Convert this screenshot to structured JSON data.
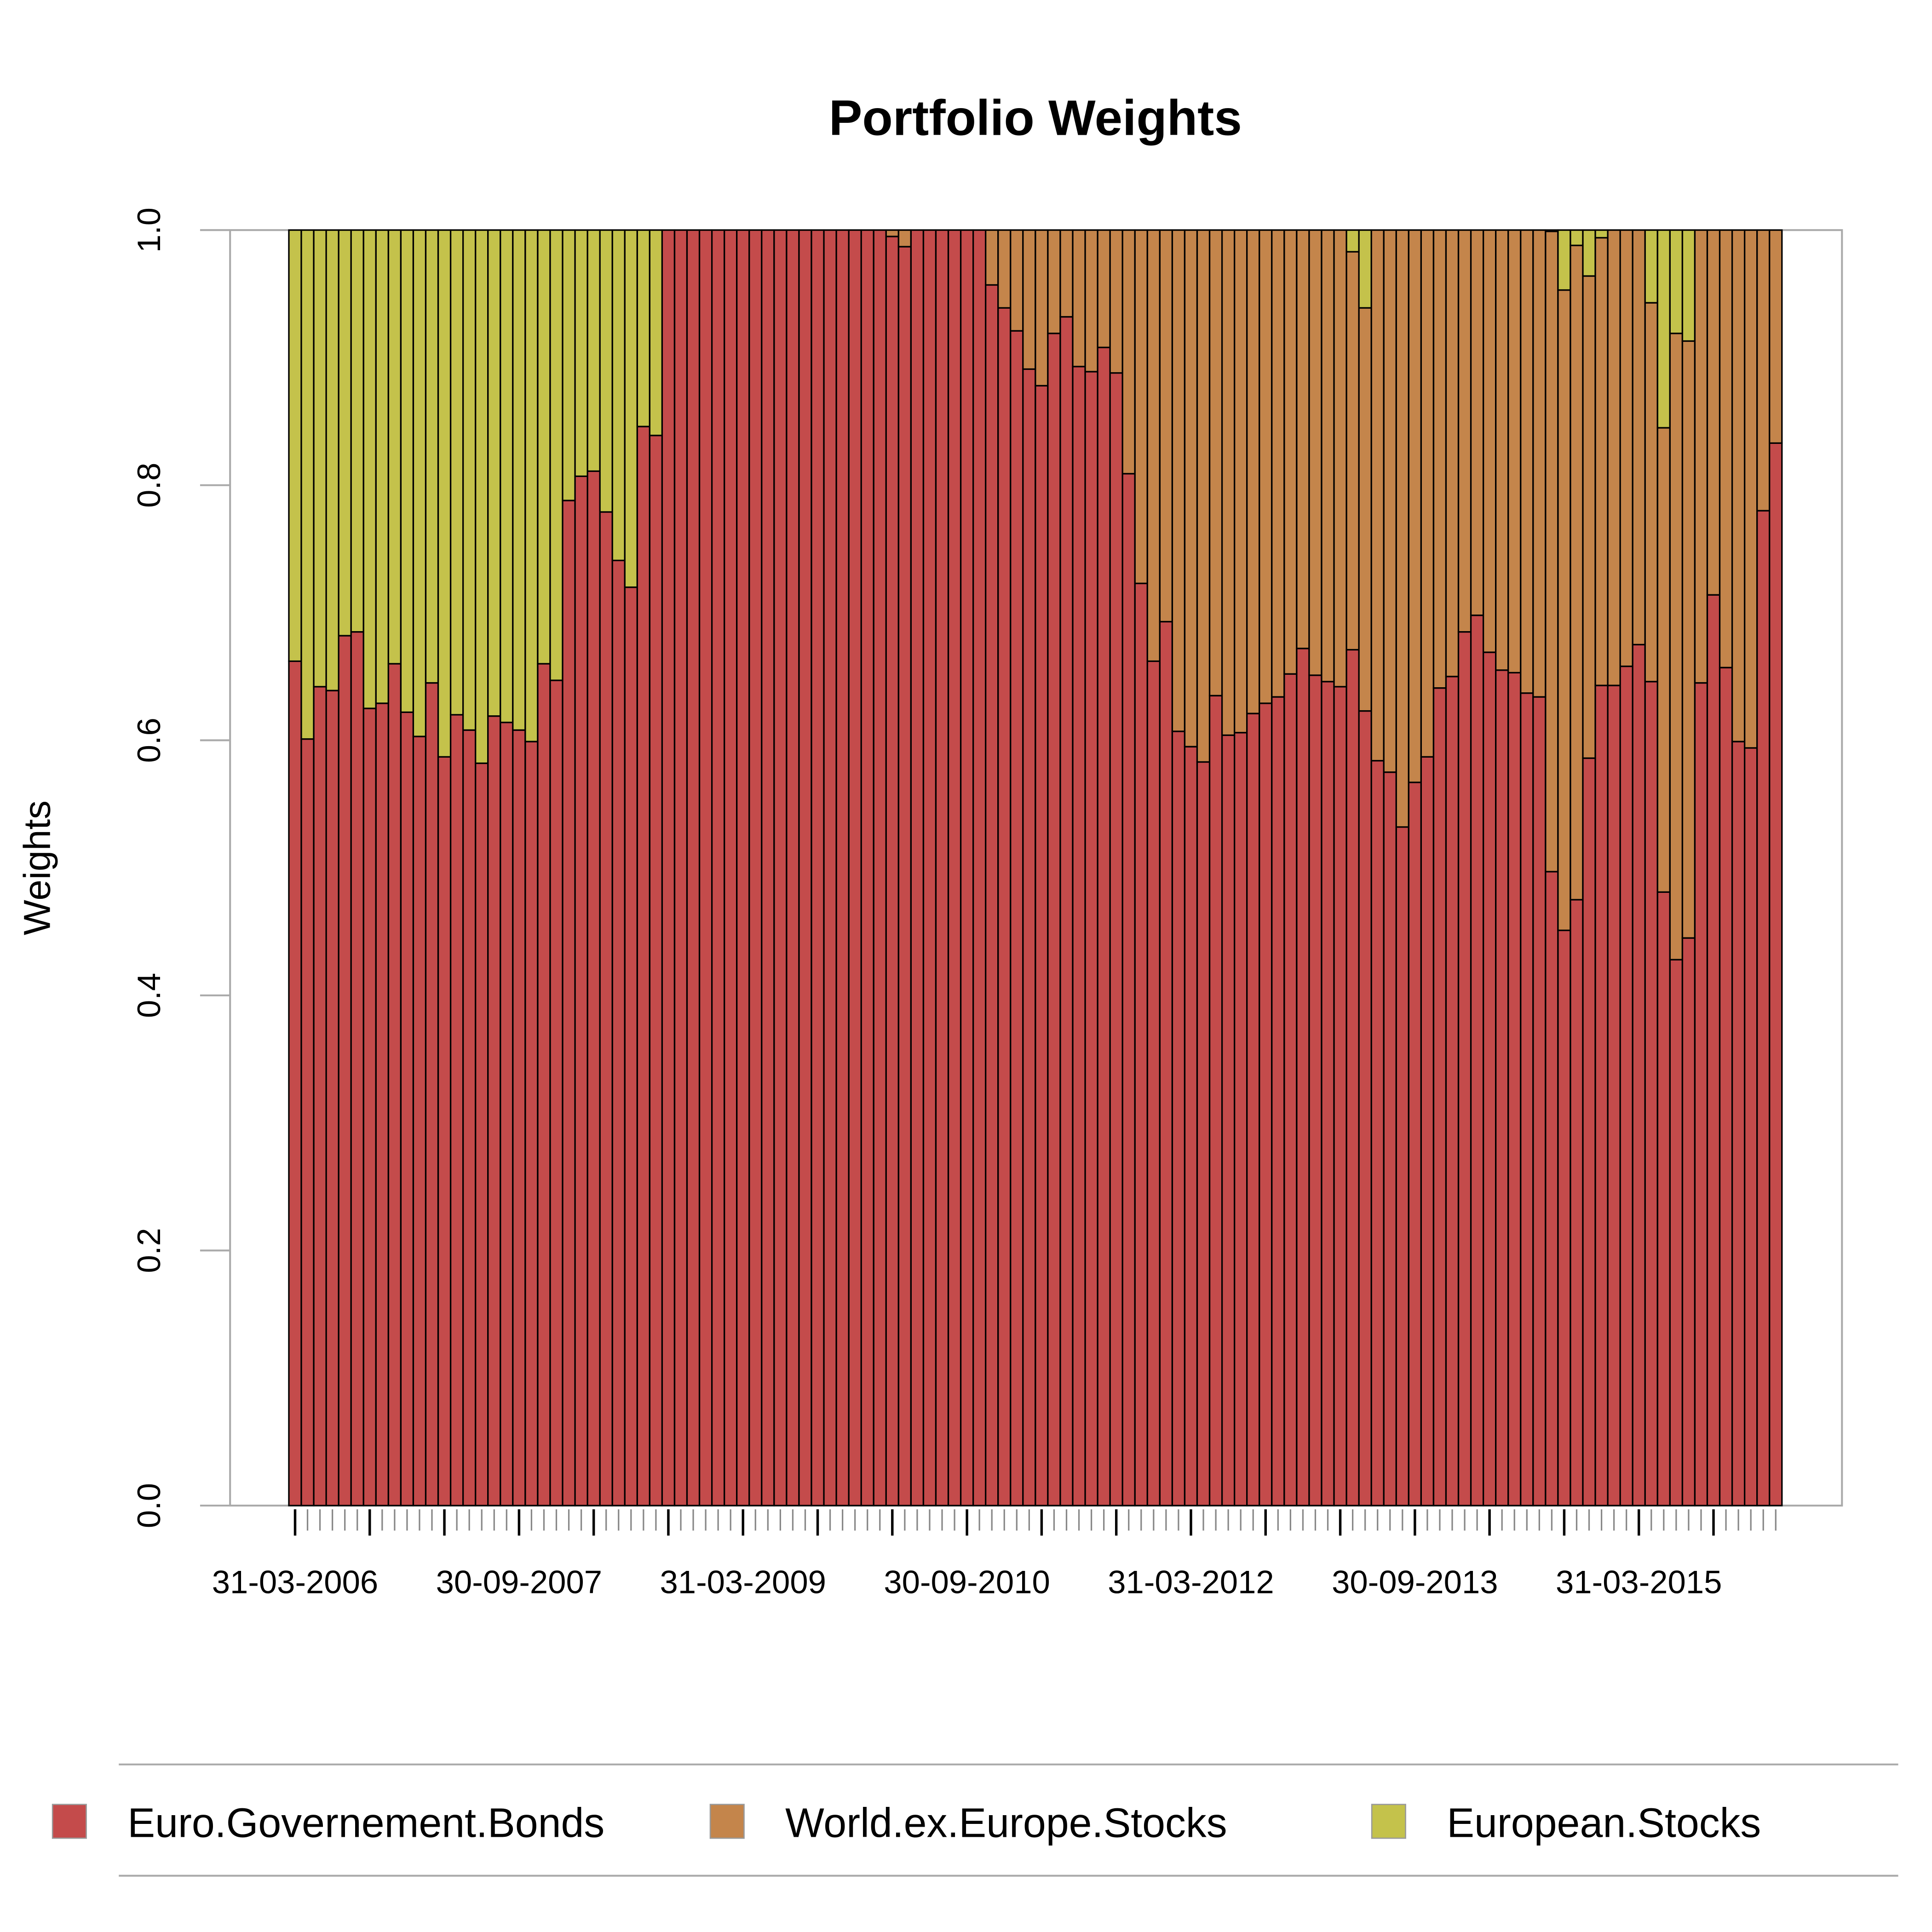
{
  "chart_data": {
    "type": "stacked-bar",
    "title": "Portfolio Weights",
    "ylabel": "Weights",
    "categories": [
      "31-03-2006",
      null,
      null,
      null,
      null,
      null,
      null,
      null,
      null,
      null,
      null,
      null,
      null,
      null,
      null,
      null,
      null,
      null,
      "30-09-2007",
      null,
      null,
      null,
      null,
      null,
      null,
      null,
      null,
      null,
      null,
      null,
      null,
      null,
      null,
      null,
      null,
      null,
      "31-03-2009",
      null,
      null,
      null,
      null,
      null,
      null,
      null,
      null,
      null,
      null,
      null,
      null,
      null,
      null,
      null,
      null,
      null,
      "30-09-2010",
      null,
      null,
      null,
      null,
      null,
      null,
      null,
      null,
      null,
      null,
      null,
      null,
      null,
      null,
      null,
      null,
      null,
      "31-03-2012",
      null,
      null,
      null,
      null,
      null,
      null,
      null,
      null,
      null,
      null,
      null,
      null,
      null,
      null,
      null,
      null,
      null,
      "30-09-2013",
      null,
      null,
      null,
      null,
      null,
      null,
      null,
      null,
      null,
      null,
      null,
      null,
      null,
      null,
      null,
      null,
      null,
      "31-03-2015",
      null,
      null,
      null,
      null,
      null,
      null,
      null,
      null,
      null,
      null,
      null
    ],
    "series": [
      {
        "name": "Euro.Governement.Bonds",
        "color": "#c44b4b",
        "values": [
          0.662,
          0.601,
          0.642,
          0.639,
          0.682,
          0.685,
          0.625,
          0.629,
          0.66,
          0.622,
          0.603,
          0.645,
          0.587,
          0.62,
          0.608,
          0.582,
          0.619,
          0.614,
          0.608,
          0.599,
          0.66,
          0.647,
          0.788,
          0.807,
          0.811,
          0.779,
          0.741,
          0.72,
          0.846,
          0.839,
          1,
          1,
          1,
          1,
          1,
          1,
          1,
          1,
          1,
          1,
          1,
          1,
          1,
          1,
          1,
          1,
          1,
          1,
          0.995,
          0.987,
          1,
          1,
          1,
          1,
          1,
          1,
          0.957,
          0.939,
          0.921,
          0.891,
          0.878,
          0.919,
          0.932,
          0.893,
          0.889,
          0.908,
          0.888,
          0.809,
          0.723,
          0.662,
          0.693,
          0.607,
          0.595,
          0.583,
          0.635,
          0.604,
          0.606,
          0.621,
          0.629,
          0.634,
          0.652,
          0.672,
          0.651,
          0.646,
          0.642,
          0.671,
          0.623,
          0.584,
          0.575,
          0.532,
          0.567,
          0.587,
          0.641,
          0.65,
          0.685,
          0.698,
          0.669,
          0.655,
          0.653,
          0.637,
          0.634,
          0.497,
          0.451,
          0.475,
          0.586,
          0.643,
          0.643,
          0.658,
          0.675,
          0.646,
          0.481,
          0.428,
          0.445,
          0.645,
          0.714,
          0.657,
          0.599,
          0.594,
          0.78,
          0.833
        ]
      },
      {
        "name": "World.ex.Europe.Stocks",
        "color": "#c4854b",
        "values": [
          0,
          0,
          0,
          0,
          0,
          0,
          0,
          0,
          0,
          0,
          0,
          0,
          0,
          0,
          0,
          0,
          0,
          0,
          0,
          0,
          0,
          0,
          0,
          0,
          0,
          0,
          0,
          0,
          0,
          0,
          0,
          0,
          0,
          0,
          0,
          0,
          0,
          0,
          0,
          0,
          0,
          0,
          0,
          0,
          0,
          0,
          0,
          0,
          0.005,
          0.013,
          0,
          0,
          0,
          0,
          0,
          0,
          0.043,
          0.061,
          0.079,
          0.109,
          0.122,
          0.081,
          0.068,
          0.107,
          0.111,
          0.092,
          0.112,
          0.191,
          0.277,
          0.338,
          0.307,
          0.393,
          0.405,
          0.417,
          0.365,
          0.396,
          0.394,
          0.379,
          0.371,
          0.366,
          0.348,
          0.328,
          0.349,
          0.354,
          0.358,
          0.312,
          0.316,
          0.416,
          0.425,
          0.468,
          0.433,
          0.413,
          0.359,
          0.35,
          0.315,
          0.302,
          0.331,
          0.345,
          0.347,
          0.363,
          0.366,
          0.502,
          0.502,
          0.513,
          0.378,
          0.351,
          0.357,
          0.342,
          0.325,
          0.297,
          0.364,
          0.491,
          0.468,
          0.355,
          0.286,
          0.343,
          0.401,
          0.406,
          0.22,
          0.167
        ]
      },
      {
        "name": "European.Stocks",
        "color": "#c4c24b",
        "values": [
          0.338,
          0.399,
          0.358,
          0.361,
          0.318,
          0.315,
          0.375,
          0.371,
          0.34,
          0.378,
          0.397,
          0.355,
          0.413,
          0.38,
          0.392,
          0.418,
          0.381,
          0.386,
          0.392,
          0.401,
          0.34,
          0.353,
          0.212,
          0.193,
          0.189,
          0.221,
          0.259,
          0.28,
          0.154,
          0.161,
          0,
          0,
          0,
          0,
          0,
          0,
          0,
          0,
          0,
          0,
          0,
          0,
          0,
          0,
          0,
          0,
          0,
          0,
          0,
          0,
          0,
          0,
          0,
          0,
          0,
          0,
          0,
          0,
          0,
          0,
          0,
          0,
          0,
          0,
          0,
          0,
          0,
          0,
          0,
          0,
          0,
          0,
          0,
          0,
          0,
          0,
          0,
          0,
          0,
          0,
          0,
          0,
          0,
          0,
          0,
          0.017,
          0.061,
          0,
          0,
          0,
          0,
          0,
          0,
          0,
          0,
          0,
          0,
          0,
          0,
          0,
          0,
          0.001,
          0.047,
          0.012,
          0.036,
          0.006,
          0,
          0,
          0,
          0.057,
          0.155,
          0.081,
          0.087,
          0,
          0,
          0,
          0,
          0,
          0,
          0
        ]
      }
    ],
    "ylim": [
      0,
      1
    ],
    "yticks": [
      {
        "value": 0,
        "label": "0.0"
      },
      0.2,
      0.4,
      0.6,
      0.8,
      {
        "value": 1,
        "label": "1.0"
      }
    ],
    "grid": false
  }
}
